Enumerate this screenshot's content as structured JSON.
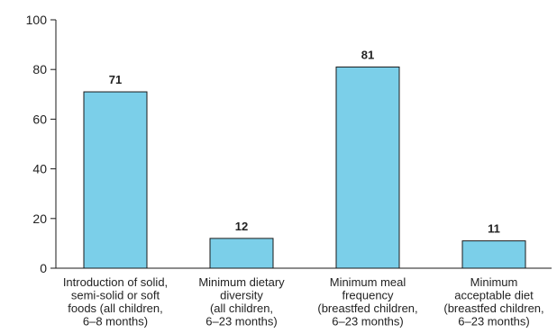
{
  "chart_data": {
    "type": "bar",
    "categories": [
      [
        "Introduction of solid,",
        "semi-solid or soft",
        "foods (all children,",
        "6–8 months)"
      ],
      [
        "Minimum dietary",
        "diversity",
        "(all children,",
        "6–23 months)"
      ],
      [
        "Minimum meal",
        "frequency",
        "(breastfed children,",
        "6–23 months)"
      ],
      [
        "Minimum",
        "acceptable diet",
        "(breastfed children,",
        "6–23 months)"
      ]
    ],
    "values": [
      71,
      12,
      81,
      11
    ],
    "value_labels": [
      "71",
      "12",
      "81",
      "11"
    ],
    "ylim": [
      0,
      100
    ],
    "yticks": [
      0,
      20,
      40,
      60,
      80,
      100
    ],
    "ytick_labels": [
      "0",
      "20",
      "40",
      "60",
      "80",
      "100"
    ],
    "bar_color": "#7bcfe9",
    "bar_edge_color": "#1a1a1a",
    "grid": false,
    "title": "",
    "xlabel": "",
    "ylabel": ""
  }
}
